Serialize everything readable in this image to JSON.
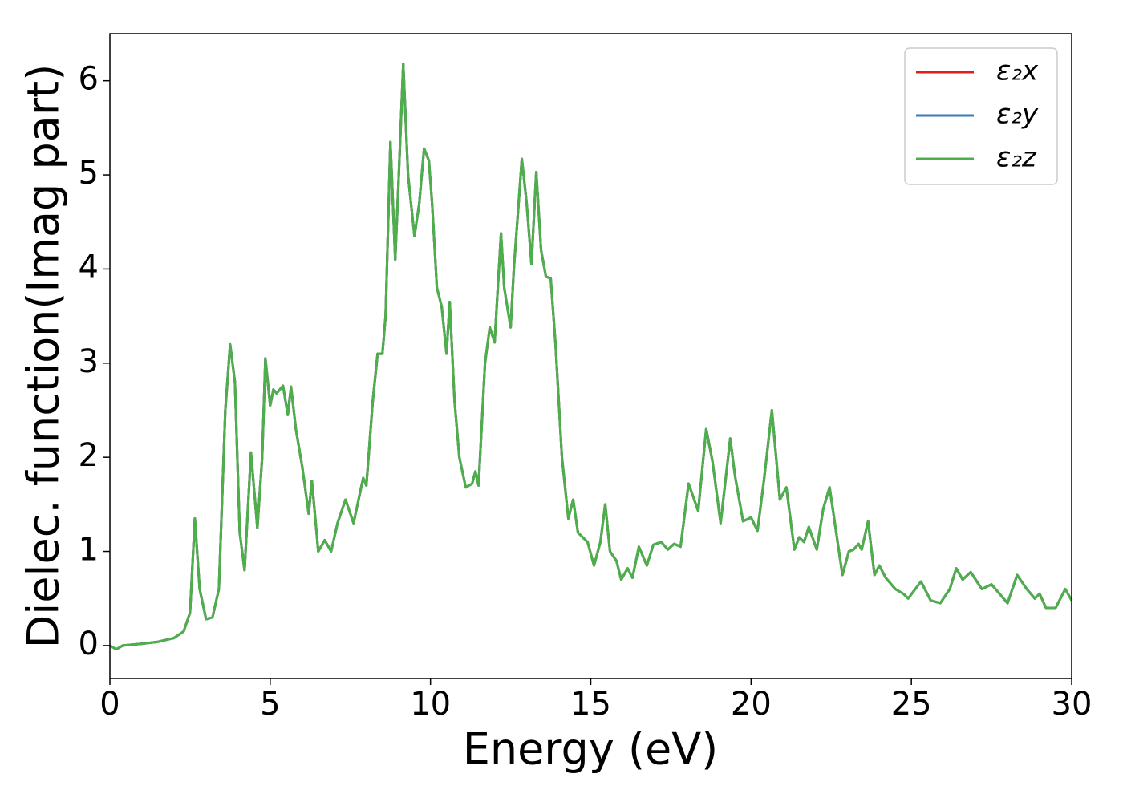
{
  "chart_data": {
    "type": "line",
    "xlabel": "Energy (eV)",
    "ylabel": "Dielec. function(Imag part)",
    "xlim": [
      0,
      30
    ],
    "xticks": [
      0,
      5,
      10,
      15,
      20,
      25,
      30
    ],
    "ylim": [
      -0.35,
      6.5
    ],
    "yticks": [
      0,
      1,
      2,
      3,
      4,
      5,
      6
    ],
    "legend": "upper right",
    "x": [
      0,
      0.2,
      0.4,
      1.0,
      1.5,
      2.0,
      2.3,
      2.5,
      2.65,
      2.8,
      3.0,
      3.2,
      3.4,
      3.6,
      3.75,
      3.9,
      4.05,
      4.2,
      4.4,
      4.6,
      4.75,
      4.85,
      5.0,
      5.1,
      5.2,
      5.4,
      5.55,
      5.65,
      5.8,
      6.0,
      6.2,
      6.3,
      6.5,
      6.7,
      6.9,
      7.1,
      7.35,
      7.6,
      7.9,
      8.0,
      8.2,
      8.35,
      8.5,
      8.6,
      8.75,
      8.9,
      9.0,
      9.15,
      9.3,
      9.5,
      9.65,
      9.8,
      9.95,
      10.05,
      10.2,
      10.35,
      10.5,
      10.6,
      10.75,
      10.9,
      11.1,
      11.3,
      11.4,
      11.5,
      11.7,
      11.85,
      12.0,
      12.2,
      12.3,
      12.5,
      12.6,
      12.85,
      13.0,
      13.15,
      13.3,
      13.45,
      13.6,
      13.75,
      13.9,
      14.1,
      14.3,
      14.45,
      14.6,
      14.9,
      15.1,
      15.3,
      15.45,
      15.6,
      15.8,
      15.95,
      16.15,
      16.3,
      16.5,
      16.75,
      16.95,
      17.2,
      17.4,
      17.6,
      17.8,
      18.05,
      18.35,
      18.6,
      18.8,
      19.05,
      19.35,
      19.5,
      19.75,
      20.0,
      20.2,
      20.4,
      20.65,
      20.9,
      21.1,
      21.35,
      21.5,
      21.65,
      21.8,
      22.05,
      22.25,
      22.45,
      22.85,
      23.05,
      23.2,
      23.35,
      23.45,
      23.65,
      23.85,
      24.0,
      24.2,
      24.5,
      24.75,
      24.9,
      25.3,
      25.6,
      25.9,
      26.2,
      26.4,
      26.6,
      26.85,
      27.2,
      27.5,
      27.75,
      28.0,
      28.3,
      28.6,
      28.85,
      29.0,
      29.2,
      29.5,
      29.8,
      30.0
    ],
    "series": [
      {
        "name": "ε₂x",
        "color": "#e41a1c",
        "values": [
          0,
          -0.04,
          0,
          0.02,
          0.04,
          0.08,
          0.15,
          0.35,
          1.35,
          0.6,
          0.28,
          0.3,
          0.6,
          2.5,
          3.2,
          2.8,
          1.2,
          0.8,
          2.05,
          1.25,
          2.0,
          3.05,
          2.55,
          2.72,
          2.68,
          2.76,
          2.45,
          2.75,
          2.3,
          1.9,
          1.4,
          1.75,
          1.0,
          1.12,
          1.0,
          1.3,
          1.55,
          1.3,
          1.78,
          1.7,
          2.6,
          3.1,
          3.1,
          3.5,
          5.35,
          4.1,
          4.9,
          6.18,
          5.0,
          4.35,
          4.7,
          5.28,
          5.15,
          4.7,
          3.8,
          3.6,
          3.1,
          3.65,
          2.6,
          2.0,
          1.68,
          1.72,
          1.85,
          1.7,
          3.0,
          3.38,
          3.22,
          4.38,
          3.8,
          3.38,
          4.0,
          5.17,
          4.7,
          4.05,
          5.03,
          4.2,
          3.92,
          3.9,
          3.2,
          2.0,
          1.35,
          1.55,
          1.2,
          1.1,
          0.85,
          1.1,
          1.5,
          1.0,
          0.9,
          0.7,
          0.82,
          0.72,
          1.05,
          0.85,
          1.07,
          1.1,
          1.02,
          1.08,
          1.05,
          1.72,
          1.43,
          2.3,
          1.95,
          1.3,
          2.2,
          1.8,
          1.32,
          1.36,
          1.22,
          1.75,
          2.5,
          1.55,
          1.68,
          1.02,
          1.15,
          1.1,
          1.26,
          1.02,
          1.45,
          1.68,
          0.75,
          1.0,
          1.02,
          1.08,
          1.02,
          1.32,
          0.75,
          0.85,
          0.72,
          0.6,
          0.55,
          0.5,
          0.68,
          0.48,
          0.45,
          0.6,
          0.82,
          0.7,
          0.78,
          0.6,
          0.65,
          0.55,
          0.45,
          0.75,
          0.6,
          0.5,
          0.55,
          0.4,
          0.4,
          0.6,
          0.48
        ]
      },
      {
        "name": "ε₂y",
        "color": "#377eb8",
        "values": [
          0,
          -0.04,
          0,
          0.02,
          0.04,
          0.08,
          0.15,
          0.35,
          1.35,
          0.6,
          0.28,
          0.3,
          0.6,
          2.5,
          3.2,
          2.8,
          1.2,
          0.8,
          2.05,
          1.25,
          2.0,
          3.05,
          2.55,
          2.72,
          2.68,
          2.76,
          2.45,
          2.75,
          2.3,
          1.9,
          1.4,
          1.75,
          1.0,
          1.12,
          1.0,
          1.3,
          1.55,
          1.3,
          1.78,
          1.7,
          2.6,
          3.1,
          3.1,
          3.5,
          5.35,
          4.1,
          4.9,
          6.18,
          5.0,
          4.35,
          4.7,
          5.28,
          5.15,
          4.7,
          3.8,
          3.6,
          3.1,
          3.65,
          2.6,
          2.0,
          1.68,
          1.72,
          1.85,
          1.7,
          3.0,
          3.38,
          3.22,
          4.38,
          3.8,
          3.38,
          4.0,
          5.17,
          4.7,
          4.05,
          5.03,
          4.2,
          3.92,
          3.9,
          3.2,
          2.0,
          1.35,
          1.55,
          1.2,
          1.1,
          0.85,
          1.1,
          1.5,
          1.0,
          0.9,
          0.7,
          0.82,
          0.72,
          1.05,
          0.85,
          1.07,
          1.1,
          1.02,
          1.08,
          1.05,
          1.72,
          1.43,
          2.3,
          1.95,
          1.3,
          2.2,
          1.8,
          1.32,
          1.36,
          1.22,
          1.75,
          2.5,
          1.55,
          1.68,
          1.02,
          1.15,
          1.1,
          1.26,
          1.02,
          1.45,
          1.68,
          0.75,
          1.0,
          1.02,
          1.08,
          1.02,
          1.32,
          0.75,
          0.85,
          0.72,
          0.6,
          0.55,
          0.5,
          0.68,
          0.48,
          0.45,
          0.6,
          0.82,
          0.7,
          0.78,
          0.6,
          0.65,
          0.55,
          0.45,
          0.75,
          0.6,
          0.5,
          0.55,
          0.4,
          0.4,
          0.6,
          0.48
        ]
      },
      {
        "name": "ε₂z",
        "color": "#4daf4a",
        "values": [
          0,
          -0.04,
          0,
          0.02,
          0.04,
          0.08,
          0.15,
          0.35,
          1.35,
          0.6,
          0.28,
          0.3,
          0.6,
          2.5,
          3.2,
          2.8,
          1.2,
          0.8,
          2.05,
          1.25,
          2.0,
          3.05,
          2.55,
          2.72,
          2.68,
          2.76,
          2.45,
          2.75,
          2.3,
          1.9,
          1.4,
          1.75,
          1.0,
          1.12,
          1.0,
          1.3,
          1.55,
          1.3,
          1.78,
          1.7,
          2.6,
          3.1,
          3.1,
          3.5,
          5.35,
          4.1,
          4.9,
          6.18,
          5.0,
          4.35,
          4.7,
          5.28,
          5.15,
          4.7,
          3.8,
          3.6,
          3.1,
          3.65,
          2.6,
          2.0,
          1.68,
          1.72,
          1.85,
          1.7,
          3.0,
          3.38,
          3.22,
          4.38,
          3.8,
          3.38,
          4.0,
          5.17,
          4.7,
          4.05,
          5.03,
          4.2,
          3.92,
          3.9,
          3.2,
          2.0,
          1.35,
          1.55,
          1.2,
          1.1,
          0.85,
          1.1,
          1.5,
          1.0,
          0.9,
          0.7,
          0.82,
          0.72,
          1.05,
          0.85,
          1.07,
          1.1,
          1.02,
          1.08,
          1.05,
          1.72,
          1.43,
          2.3,
          1.95,
          1.3,
          2.2,
          1.8,
          1.32,
          1.36,
          1.22,
          1.75,
          2.5,
          1.55,
          1.68,
          1.02,
          1.15,
          1.1,
          1.26,
          1.02,
          1.45,
          1.68,
          0.75,
          1.0,
          1.02,
          1.08,
          1.02,
          1.32,
          0.75,
          0.85,
          0.72,
          0.6,
          0.55,
          0.5,
          0.68,
          0.48,
          0.45,
          0.6,
          0.82,
          0.7,
          0.78,
          0.6,
          0.65,
          0.55,
          0.45,
          0.75,
          0.6,
          0.5,
          0.55,
          0.4,
          0.4,
          0.6,
          0.48
        ]
      }
    ]
  }
}
